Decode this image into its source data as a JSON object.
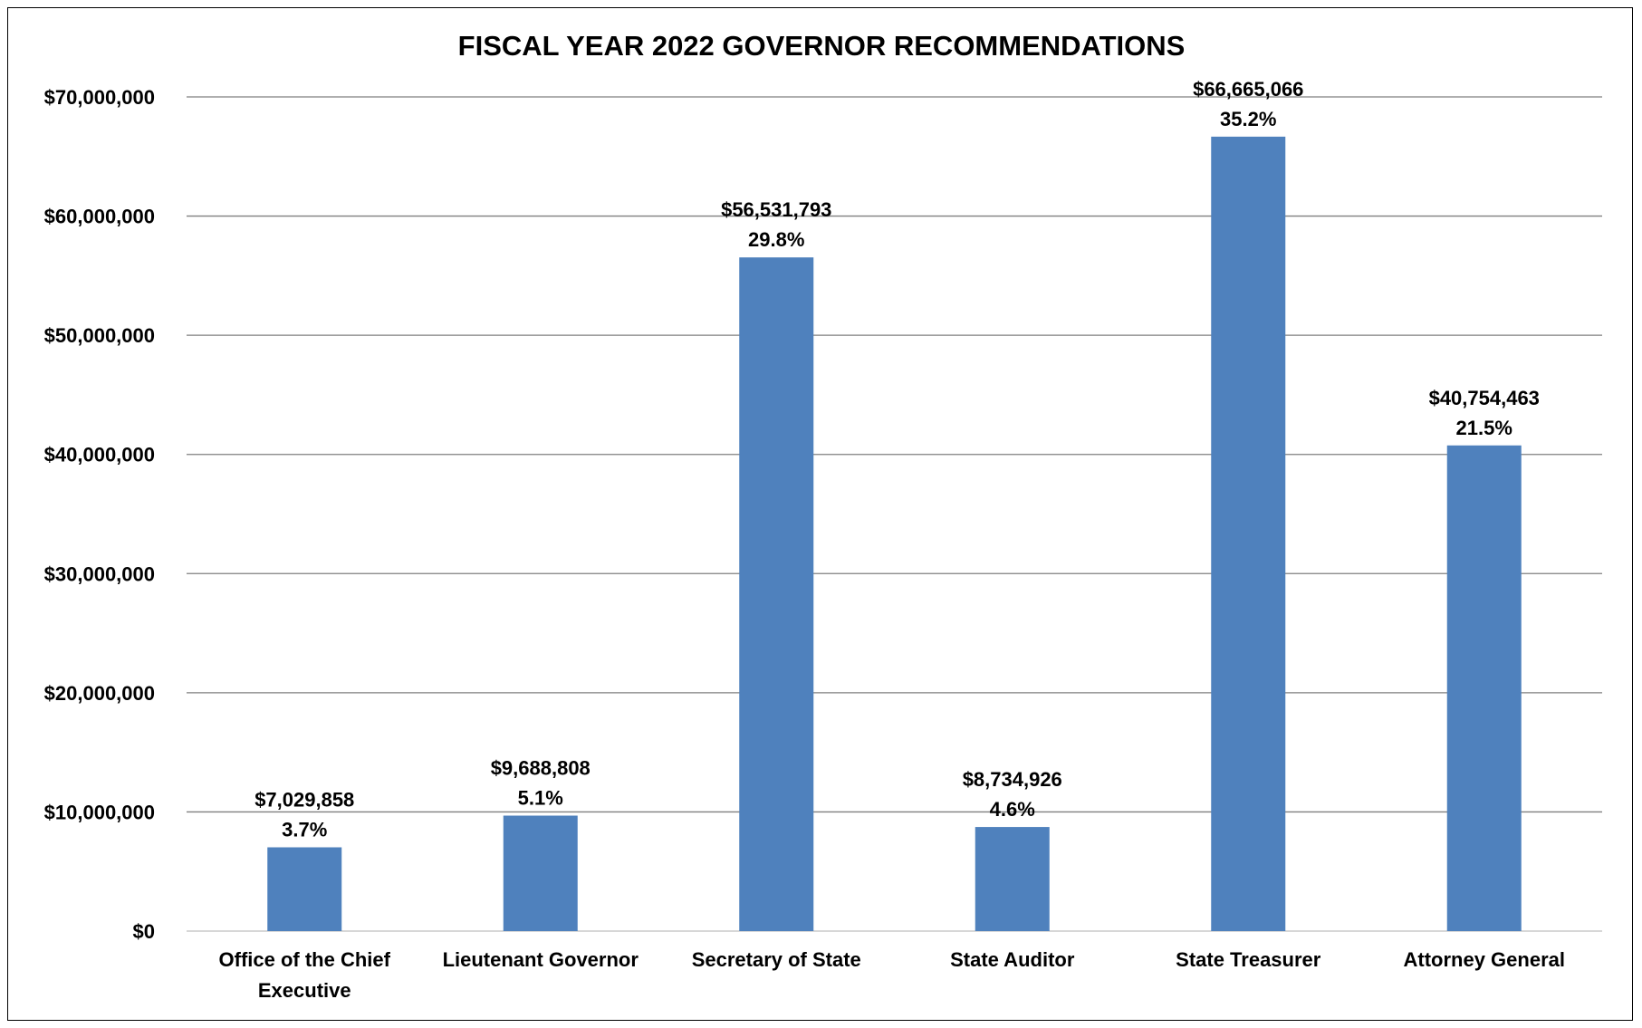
{
  "chart_data": {
    "type": "bar",
    "title": "FISCAL YEAR 2022 GOVERNOR RECOMMENDATIONS",
    "xlabel": "",
    "ylabel": "",
    "ylim": [
      0,
      70000000
    ],
    "y_ticks": [
      0,
      10000000,
      20000000,
      30000000,
      40000000,
      50000000,
      60000000,
      70000000
    ],
    "y_tick_labels": [
      "$0",
      "$10,000,000",
      "$20,000,000",
      "$30,000,000",
      "$40,000,000",
      "$50,000,000",
      "$60,000,000",
      "$70,000,000"
    ],
    "grid": true,
    "legend": "none",
    "bar_color": "#4f81bd",
    "categories": [
      [
        "Office of the Chief",
        "Executive"
      ],
      [
        "Lieutenant Governor"
      ],
      [
        "Secretary of State"
      ],
      [
        "State Auditor"
      ],
      [
        "State Treasurer"
      ],
      [
        "Attorney General"
      ]
    ],
    "values": [
      7029858,
      9688808,
      56531793,
      8734926,
      66665066,
      40754463
    ],
    "value_labels": [
      "$7,029,858",
      "$9,688,808",
      "$56,531,793",
      "$8,734,926",
      "$66,665,066",
      "$40,754,463"
    ],
    "percent_labels": [
      "3.7%",
      "5.1%",
      "29.8%",
      "4.6%",
      "35.2%",
      "21.5%"
    ]
  }
}
